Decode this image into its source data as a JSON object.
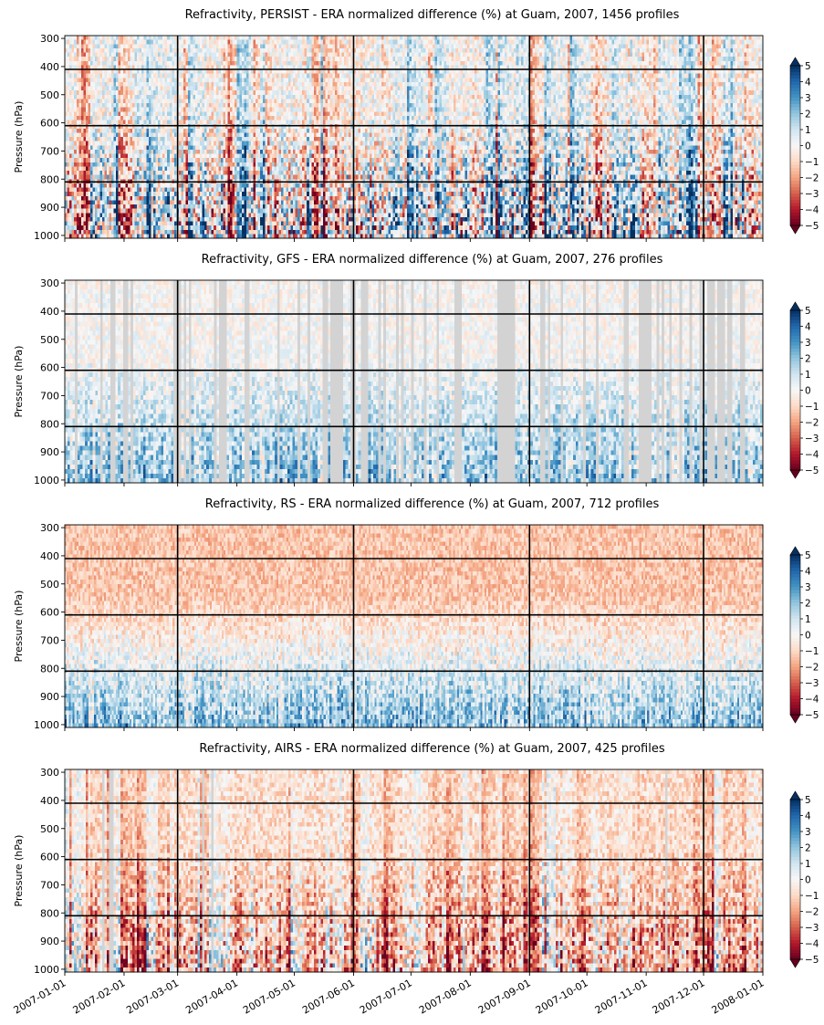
{
  "figure": {
    "colormap": "RdBu",
    "missing_color": "#d3d3d3",
    "grid_color": "#000000"
  },
  "chart_data": [
    {
      "type": "heatmap",
      "title": "Refractivity, PERSIST - ERA normalized difference (%) at Guam, 2007, 1456 profiles",
      "ylabel": "Pressure (hPa)",
      "yticks": [
        300,
        400,
        500,
        600,
        700,
        800,
        900,
        1000
      ],
      "ylim": [
        1010,
        290
      ],
      "xlim": [
        "2007-01-01",
        "2008-01-01"
      ],
      "hlines": [
        410,
        610,
        810
      ],
      "vlines": [
        "2007-03-01",
        "2007-06-01",
        "2007-09-01",
        "2007-12-01"
      ],
      "colorbar": {
        "range": [
          -5,
          5
        ],
        "ticks": [
          -5,
          -4,
          -3,
          -2,
          -1,
          0,
          1,
          2,
          3,
          4,
          5
        ],
        "extend": "both"
      },
      "pattern": {
        "seed": 11,
        "columns": 300,
        "rows": 48,
        "missing": 0.0,
        "lower_bias": 0.3,
        "lower_amp": 5.5,
        "upper_bias": 0.0,
        "upper_amp": 2.0,
        "streaks": true
      }
    },
    {
      "type": "heatmap",
      "title": "Refractivity, GFS - ERA normalized difference (%) at Guam, 2007, 276 profiles",
      "ylabel": "Pressure (hPa)",
      "yticks": [
        300,
        400,
        500,
        600,
        700,
        800,
        900,
        1000
      ],
      "ylim": [
        1010,
        290
      ],
      "xlim": [
        "2007-01-01",
        "2008-01-01"
      ],
      "hlines": [
        410,
        610,
        810
      ],
      "vlines": [
        "2007-03-01",
        "2007-06-01",
        "2007-09-01",
        "2007-12-01"
      ],
      "colorbar": {
        "range": [
          -5,
          5
        ],
        "ticks": [
          -5,
          -4,
          -3,
          -2,
          -1,
          0,
          1,
          2,
          3,
          4,
          5
        ],
        "extend": "both"
      },
      "pattern": {
        "seed": 23,
        "columns": 276,
        "rows": 44,
        "missing": 0.32,
        "lower_bias": 1.8,
        "lower_amp": 2.6,
        "upper_bias": 0.0,
        "upper_amp": 1.2,
        "streaks": false
      }
    },
    {
      "type": "heatmap",
      "title": "Refractivity, RS - ERA normalized difference (%) at Guam, 2007, 712 profiles",
      "ylabel": "Pressure (hPa)",
      "yticks": [
        300,
        400,
        500,
        600,
        700,
        800,
        900,
        1000
      ],
      "ylim": [
        1010,
        290
      ],
      "xlim": [
        "2007-01-01",
        "2008-01-01"
      ],
      "hlines": [
        410,
        610,
        810
      ],
      "vlines": [
        "2007-03-01",
        "2007-06-01",
        "2007-09-01",
        "2007-12-01"
      ],
      "colorbar": {
        "range": [
          -5,
          5
        ],
        "ticks": [
          -5,
          -4,
          -3,
          -2,
          -1,
          0,
          1,
          2,
          3,
          4,
          5
        ],
        "extend": "both"
      },
      "pattern": {
        "seed": 37,
        "columns": 356,
        "rows": 48,
        "missing": 0.0,
        "lower_bias": 2.0,
        "lower_amp": 2.4,
        "upper_bias": -1.4,
        "upper_amp": 1.2,
        "streaks": false
      }
    },
    {
      "type": "heatmap",
      "title": "Refractivity, AIRS - ERA normalized difference (%) at Guam, 2007, 425 profiles",
      "ylabel": "Pressure (hPa)",
      "yticks": [
        300,
        400,
        500,
        600,
        700,
        800,
        900,
        1000
      ],
      "ylim": [
        1010,
        290
      ],
      "xlim": [
        "2007-01-01",
        "2008-01-01"
      ],
      "hlines": [
        410,
        610,
        810
      ],
      "vlines": [
        "2007-03-01",
        "2007-06-01",
        "2007-09-01",
        "2007-12-01"
      ],
      "colorbar": {
        "range": [
          -5,
          5
        ],
        "ticks": [
          -5,
          -4,
          -3,
          -2,
          -1,
          0,
          1,
          2,
          3,
          4,
          5
        ],
        "extend": "both"
      },
      "pattern": {
        "seed": 53,
        "columns": 300,
        "rows": 46,
        "missing": 0.04,
        "lower_bias": -1.6,
        "lower_amp": 3.6,
        "upper_bias": -0.8,
        "upper_amp": 1.4,
        "streaks": true
      },
      "xticks": [
        "2007-01-01",
        "2007-02-01",
        "2007-03-01",
        "2007-04-01",
        "2007-05-01",
        "2007-06-01",
        "2007-07-01",
        "2007-08-01",
        "2007-09-01",
        "2007-10-01",
        "2007-11-01",
        "2007-12-01",
        "2008-01-01"
      ]
    }
  ]
}
